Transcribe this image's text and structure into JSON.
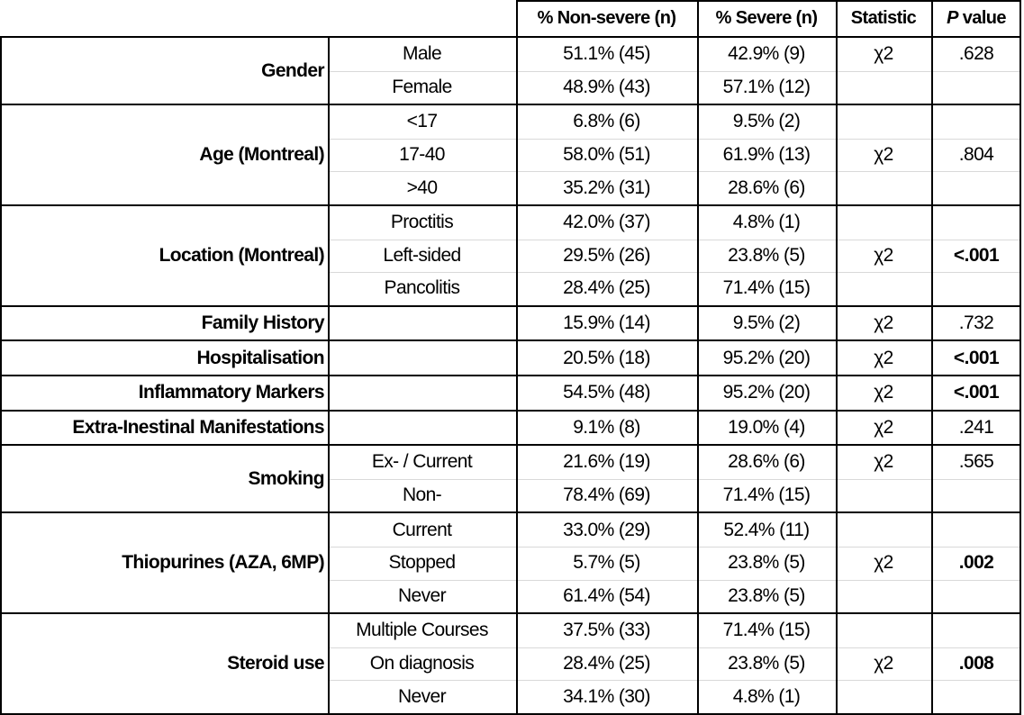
{
  "header": {
    "non_severe": "% Non-severe (n)",
    "severe": "% Severe (n)",
    "statistic": "Statistic",
    "p_value_italic": "P",
    "p_value_rest": " value"
  },
  "groups": [
    {
      "label": "Gender",
      "bold_p": false,
      "rows": [
        {
          "sub": "Male",
          "non_severe": "51.1% (45)",
          "severe": "42.9% (9)",
          "statistic": "χ2",
          "p": ".628"
        },
        {
          "sub": "Female",
          "non_severe": "48.9% (43)",
          "severe": "57.1% (12)",
          "statistic": "",
          "p": ""
        }
      ]
    },
    {
      "label": "Age (Montreal)",
      "bold_p": false,
      "rows": [
        {
          "sub": "<17",
          "non_severe": "6.8% (6)",
          "severe": "9.5% (2)",
          "statistic": "",
          "p": ""
        },
        {
          "sub": "17-40",
          "non_severe": "58.0% (51)",
          "severe": "61.9% (13)",
          "statistic": "χ2",
          "p": ".804"
        },
        {
          "sub": ">40",
          "non_severe": "35.2% (31)",
          "severe": "28.6% (6)",
          "statistic": "",
          "p": ""
        }
      ]
    },
    {
      "label": "Location (Montreal)",
      "bold_p": true,
      "rows": [
        {
          "sub": "Proctitis",
          "non_severe": "42.0% (37)",
          "severe": "4.8% (1)",
          "statistic": "",
          "p": ""
        },
        {
          "sub": "Left-sided",
          "non_severe": "29.5% (26)",
          "severe": "23.8% (5)",
          "statistic": "χ2",
          "p": "<.001"
        },
        {
          "sub": "Pancolitis",
          "non_severe": "28.4% (25)",
          "severe": "71.4% (15)",
          "statistic": "",
          "p": ""
        }
      ]
    },
    {
      "label": "Family History",
      "bold_p": false,
      "rows": [
        {
          "sub": "",
          "non_severe": "15.9% (14)",
          "severe": "9.5% (2)",
          "statistic": "χ2",
          "p": ".732"
        }
      ]
    },
    {
      "label": "Hospitalisation",
      "bold_p": true,
      "rows": [
        {
          "sub": "",
          "non_severe": "20.5% (18)",
          "severe": "95.2% (20)",
          "statistic": "χ2",
          "p": "<.001"
        }
      ]
    },
    {
      "label": "Inflammatory Markers",
      "bold_p": true,
      "rows": [
        {
          "sub": "",
          "non_severe": "54.5% (48)",
          "severe": "95.2% (20)",
          "statistic": "χ2",
          "p": "<.001"
        }
      ]
    },
    {
      "label": "Extra-Inestinal Manifestations",
      "bold_p": false,
      "rows": [
        {
          "sub": "",
          "non_severe": "9.1% (8)",
          "severe": "19.0% (4)",
          "statistic": "χ2",
          "p": ".241"
        }
      ]
    },
    {
      "label": "Smoking",
      "bold_p": false,
      "rows": [
        {
          "sub": "Ex- / Current",
          "non_severe": "21.6% (19)",
          "severe": "28.6% (6)",
          "statistic": "χ2",
          "p": ".565"
        },
        {
          "sub": "Non-",
          "non_severe": "78.4% (69)",
          "severe": "71.4% (15)",
          "statistic": "",
          "p": ""
        }
      ]
    },
    {
      "label": "Thiopurines (AZA, 6MP)",
      "bold_p": true,
      "rows": [
        {
          "sub": "Current",
          "non_severe": "33.0% (29)",
          "severe": "52.4% (11)",
          "statistic": "",
          "p": ""
        },
        {
          "sub": "Stopped",
          "non_severe": "5.7% (5)",
          "severe": "23.8% (5)",
          "statistic": "χ2",
          "p": ".002"
        },
        {
          "sub": "Never",
          "non_severe": "61.4% (54)",
          "severe": "23.8% (5)",
          "statistic": "",
          "p": ""
        }
      ]
    },
    {
      "label": "Steroid use",
      "bold_p": true,
      "rows": [
        {
          "sub": "Multiple Courses",
          "non_severe": "37.5% (33)",
          "severe": "71.4% (15)",
          "statistic": "",
          "p": ""
        },
        {
          "sub": "On diagnosis",
          "non_severe": "28.4% (25)",
          "severe": "23.8% (5)",
          "statistic": "χ2",
          "p": ".008"
        },
        {
          "sub": "Never",
          "non_severe": "34.1% (30)",
          "severe": "4.8% (1)",
          "statistic": "",
          "p": ""
        }
      ]
    }
  ]
}
